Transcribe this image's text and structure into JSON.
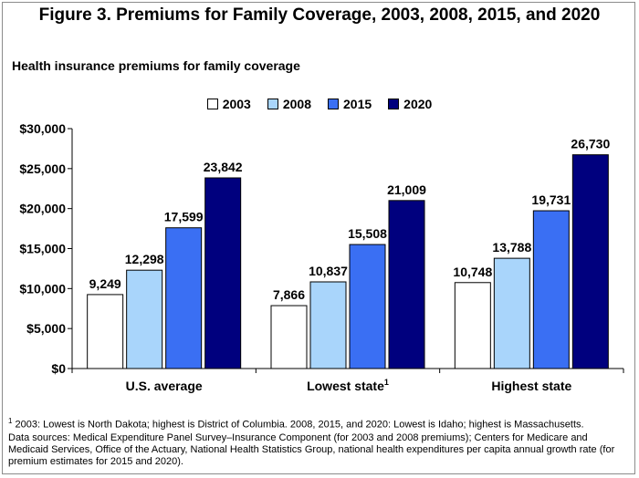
{
  "title": "Figure 3. Premiums for Family Coverage, 2003, 2008, 2015, and 2020",
  "subtitle": "Health insurance premiums for family coverage",
  "colors": {
    "2003": "#ffffff",
    "2008": "#a9d5fb",
    "2015": "#3a6ff3",
    "2020": "#00007e"
  },
  "chart_data": {
    "type": "bar",
    "categories": [
      "U.S. average",
      "Lowest state",
      "Highest state"
    ],
    "category_superscripts": [
      "",
      "1",
      ""
    ],
    "series": [
      {
        "name": "2003",
        "values": [
          9249,
          7866,
          10748
        ]
      },
      {
        "name": "2008",
        "values": [
          12298,
          10837,
          13788
        ]
      },
      {
        "name": "2015",
        "values": [
          17599,
          15508,
          19731
        ]
      },
      {
        "name": "2020",
        "values": [
          23842,
          21009,
          26730
        ]
      }
    ],
    "data_labels": [
      [
        "9,249",
        "7,866",
        "10,748"
      ],
      [
        "12,298",
        "10,837",
        "13,788"
      ],
      [
        "17,599",
        "15,508",
        "19,731"
      ],
      [
        "23,842",
        "21,009",
        "26,730"
      ]
    ],
    "y_ticks": [
      0,
      5000,
      10000,
      15000,
      20000,
      25000,
      30000
    ],
    "y_tick_labels": [
      "$0",
      "$5,000",
      "$10,000",
      "$15,000",
      "$20,000",
      "$25,000",
      "$30,000"
    ],
    "ylim": [
      0,
      30000
    ],
    "grid": false,
    "legend_placement": "top-center"
  },
  "footnote": {
    "marker": "1",
    "text": " 2003: Lowest is North Dakota; highest is District of Columbia. 2008, 2015, and 2020: Lowest is Idaho; highest is Massachusetts."
  },
  "sources": "Data sources: Medical Expenditure Panel Survey–Insurance Component (for 2003 and 2008 premiums); Centers for Medicare and Medicaid Services, Office of the Actuary, National Health Statistics Group, national health expenditures per capita annual growth rate (for premium estimates for 2015 and 2020)."
}
